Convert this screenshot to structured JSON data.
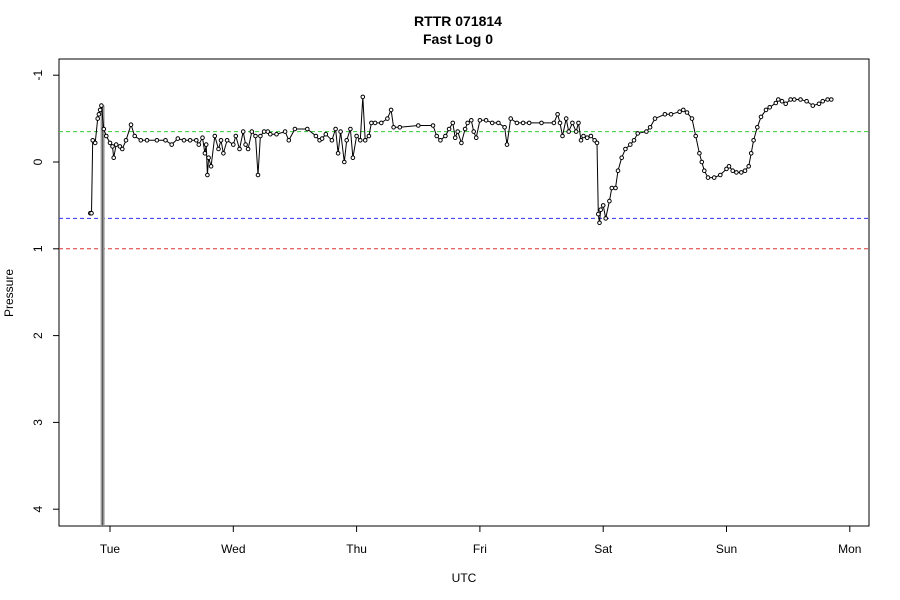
{
  "chart_data": {
    "type": "scatter",
    "title": "RTTR 071814",
    "subtitle": "Fast Log 0",
    "xlabel": "UTC",
    "ylabel": "Pressure",
    "x_ticks": [
      "Tue",
      "Wed",
      "Thu",
      "Fri",
      "Sat",
      "Sun",
      "Mon"
    ],
    "y_ticks": [
      "-1",
      "0",
      "1",
      "2",
      "3",
      "4"
    ],
    "y_tick_values": [
      -1,
      0,
      1,
      2,
      3,
      4
    ],
    "x_domain_days": [
      -0.18,
      5.92
    ],
    "ylim": [
      4.2,
      -1.2
    ],
    "y_reversed": true,
    "grid": false,
    "reference_lines": [
      {
        "value": -0.35,
        "color": "#33cc33"
      },
      {
        "value": 0.65,
        "color": "#3333ff"
      },
      {
        "value": 1.0,
        "color": "#dd3333"
      }
    ],
    "spike": {
      "x_day": -0.06,
      "y_from": -0.65,
      "y_to": 4.2,
      "color": "#999999"
    },
    "series": [
      {
        "color": "#000000",
        "points": [
          [
            -0.16,
            0.59
          ],
          [
            -0.15,
            0.59
          ],
          [
            -0.14,
            -0.25
          ],
          [
            -0.12,
            -0.22
          ],
          [
            -0.1,
            -0.5
          ],
          [
            -0.09,
            -0.55
          ],
          [
            -0.08,
            -0.6
          ],
          [
            -0.07,
            -0.65
          ],
          [
            -0.05,
            -0.38
          ],
          [
            -0.03,
            -0.3
          ],
          [
            0.0,
            -0.22
          ],
          [
            0.02,
            -0.18
          ],
          [
            0.03,
            -0.05
          ],
          [
            0.05,
            -0.2
          ],
          [
            0.08,
            -0.18
          ],
          [
            0.1,
            -0.15
          ],
          [
            0.13,
            -0.25
          ],
          [
            0.17,
            -0.43
          ],
          [
            0.2,
            -0.3
          ],
          [
            0.25,
            -0.25
          ],
          [
            0.3,
            -0.25
          ],
          [
            0.38,
            -0.25
          ],
          [
            0.45,
            -0.25
          ],
          [
            0.5,
            -0.2
          ],
          [
            0.55,
            -0.27
          ],
          [
            0.6,
            -0.25
          ],
          [
            0.65,
            -0.25
          ],
          [
            0.7,
            -0.25
          ],
          [
            0.72,
            -0.2
          ],
          [
            0.75,
            -0.28
          ],
          [
            0.77,
            -0.1
          ],
          [
            0.78,
            -0.2
          ],
          [
            0.79,
            0.15
          ],
          [
            0.8,
            -0.05
          ],
          [
            0.82,
            0.05
          ],
          [
            0.85,
            -0.3
          ],
          [
            0.88,
            -0.15
          ],
          [
            0.9,
            -0.25
          ],
          [
            0.92,
            -0.1
          ],
          [
            0.95,
            -0.25
          ],
          [
            1.0,
            -0.2
          ],
          [
            1.02,
            -0.3
          ],
          [
            1.05,
            -0.15
          ],
          [
            1.08,
            -0.35
          ],
          [
            1.1,
            -0.2
          ],
          [
            1.12,
            -0.15
          ],
          [
            1.15,
            -0.35
          ],
          [
            1.18,
            -0.3
          ],
          [
            1.2,
            0.15
          ],
          [
            1.22,
            -0.3
          ],
          [
            1.25,
            -0.35
          ],
          [
            1.28,
            -0.35
          ],
          [
            1.3,
            -0.32
          ],
          [
            1.35,
            -0.32
          ],
          [
            1.42,
            -0.35
          ],
          [
            1.45,
            -0.25
          ],
          [
            1.5,
            -0.38
          ],
          [
            1.6,
            -0.38
          ],
          [
            1.67,
            -0.3
          ],
          [
            1.7,
            -0.25
          ],
          [
            1.72,
            -0.27
          ],
          [
            1.75,
            -0.32
          ],
          [
            1.8,
            -0.25
          ],
          [
            1.83,
            -0.38
          ],
          [
            1.85,
            -0.1
          ],
          [
            1.87,
            -0.35
          ],
          [
            1.9,
            0.0
          ],
          [
            1.92,
            -0.25
          ],
          [
            1.95,
            -0.38
          ],
          [
            1.97,
            -0.05
          ],
          [
            2.0,
            -0.3
          ],
          [
            2.03,
            -0.25
          ],
          [
            2.05,
            -0.75
          ],
          [
            2.07,
            -0.25
          ],
          [
            2.1,
            -0.3
          ],
          [
            2.12,
            -0.45
          ],
          [
            2.15,
            -0.45
          ],
          [
            2.2,
            -0.45
          ],
          [
            2.25,
            -0.5
          ],
          [
            2.28,
            -0.6
          ],
          [
            2.3,
            -0.4
          ],
          [
            2.35,
            -0.4
          ],
          [
            2.5,
            -0.42
          ],
          [
            2.62,
            -0.42
          ],
          [
            2.65,
            -0.3
          ],
          [
            2.68,
            -0.25
          ],
          [
            2.72,
            -0.3
          ],
          [
            2.75,
            -0.38
          ],
          [
            2.78,
            -0.45
          ],
          [
            2.8,
            -0.28
          ],
          [
            2.82,
            -0.35
          ],
          [
            2.85,
            -0.22
          ],
          [
            2.88,
            -0.38
          ],
          [
            2.9,
            -0.45
          ],
          [
            2.93,
            -0.48
          ],
          [
            2.95,
            -0.35
          ],
          [
            2.97,
            -0.28
          ],
          [
            3.0,
            -0.48
          ],
          [
            3.05,
            -0.48
          ],
          [
            3.1,
            -0.45
          ],
          [
            3.15,
            -0.45
          ],
          [
            3.2,
            -0.4
          ],
          [
            3.22,
            -0.2
          ],
          [
            3.25,
            -0.5
          ],
          [
            3.3,
            -0.45
          ],
          [
            3.35,
            -0.45
          ],
          [
            3.4,
            -0.45
          ],
          [
            3.5,
            -0.45
          ],
          [
            3.6,
            -0.45
          ],
          [
            3.63,
            -0.55
          ],
          [
            3.65,
            -0.45
          ],
          [
            3.67,
            -0.3
          ],
          [
            3.7,
            -0.5
          ],
          [
            3.72,
            -0.35
          ],
          [
            3.75,
            -0.45
          ],
          [
            3.78,
            -0.35
          ],
          [
            3.8,
            -0.45
          ],
          [
            3.82,
            -0.25
          ],
          [
            3.84,
            -0.3
          ],
          [
            3.87,
            -0.28
          ],
          [
            3.9,
            -0.3
          ],
          [
            3.93,
            -0.25
          ],
          [
            3.95,
            -0.22
          ],
          [
            3.96,
            0.6
          ],
          [
            3.97,
            0.7
          ],
          [
            3.98,
            0.55
          ],
          [
            4.0,
            0.5
          ],
          [
            4.02,
            0.65
          ],
          [
            4.05,
            0.45
          ],
          [
            4.07,
            0.3
          ],
          [
            4.1,
            0.3
          ],
          [
            4.12,
            0.1
          ],
          [
            4.15,
            -0.05
          ],
          [
            4.18,
            -0.15
          ],
          [
            4.22,
            -0.2
          ],
          [
            4.25,
            -0.25
          ],
          [
            4.28,
            -0.33
          ],
          [
            4.35,
            -0.35
          ],
          [
            4.38,
            -0.4
          ],
          [
            4.42,
            -0.5
          ],
          [
            4.5,
            -0.55
          ],
          [
            4.55,
            -0.55
          ],
          [
            4.62,
            -0.58
          ],
          [
            4.65,
            -0.6
          ],
          [
            4.68,
            -0.57
          ],
          [
            4.72,
            -0.5
          ],
          [
            4.75,
            -0.3
          ],
          [
            4.78,
            -0.1
          ],
          [
            4.8,
            0.0
          ],
          [
            4.82,
            0.1
          ],
          [
            4.85,
            0.18
          ],
          [
            4.9,
            0.18
          ],
          [
            4.95,
            0.15
          ],
          [
            5.0,
            0.08
          ],
          [
            5.02,
            0.05
          ],
          [
            5.05,
            0.1
          ],
          [
            5.08,
            0.12
          ],
          [
            5.12,
            0.12
          ],
          [
            5.15,
            0.1
          ],
          [
            5.18,
            0.05
          ],
          [
            5.2,
            -0.1
          ],
          [
            5.22,
            -0.25
          ],
          [
            5.25,
            -0.4
          ],
          [
            5.28,
            -0.52
          ],
          [
            5.32,
            -0.6
          ],
          [
            5.35,
            -0.63
          ],
          [
            5.4,
            -0.68
          ],
          [
            5.42,
            -0.72
          ],
          [
            5.45,
            -0.7
          ],
          [
            5.48,
            -0.67
          ],
          [
            5.52,
            -0.72
          ],
          [
            5.55,
            -0.72
          ],
          [
            5.6,
            -0.72
          ],
          [
            5.65,
            -0.7
          ],
          [
            5.7,
            -0.65
          ],
          [
            5.75,
            -0.67
          ],
          [
            5.78,
            -0.7
          ],
          [
            5.82,
            -0.72
          ],
          [
            5.85,
            -0.72
          ]
        ]
      }
    ]
  }
}
